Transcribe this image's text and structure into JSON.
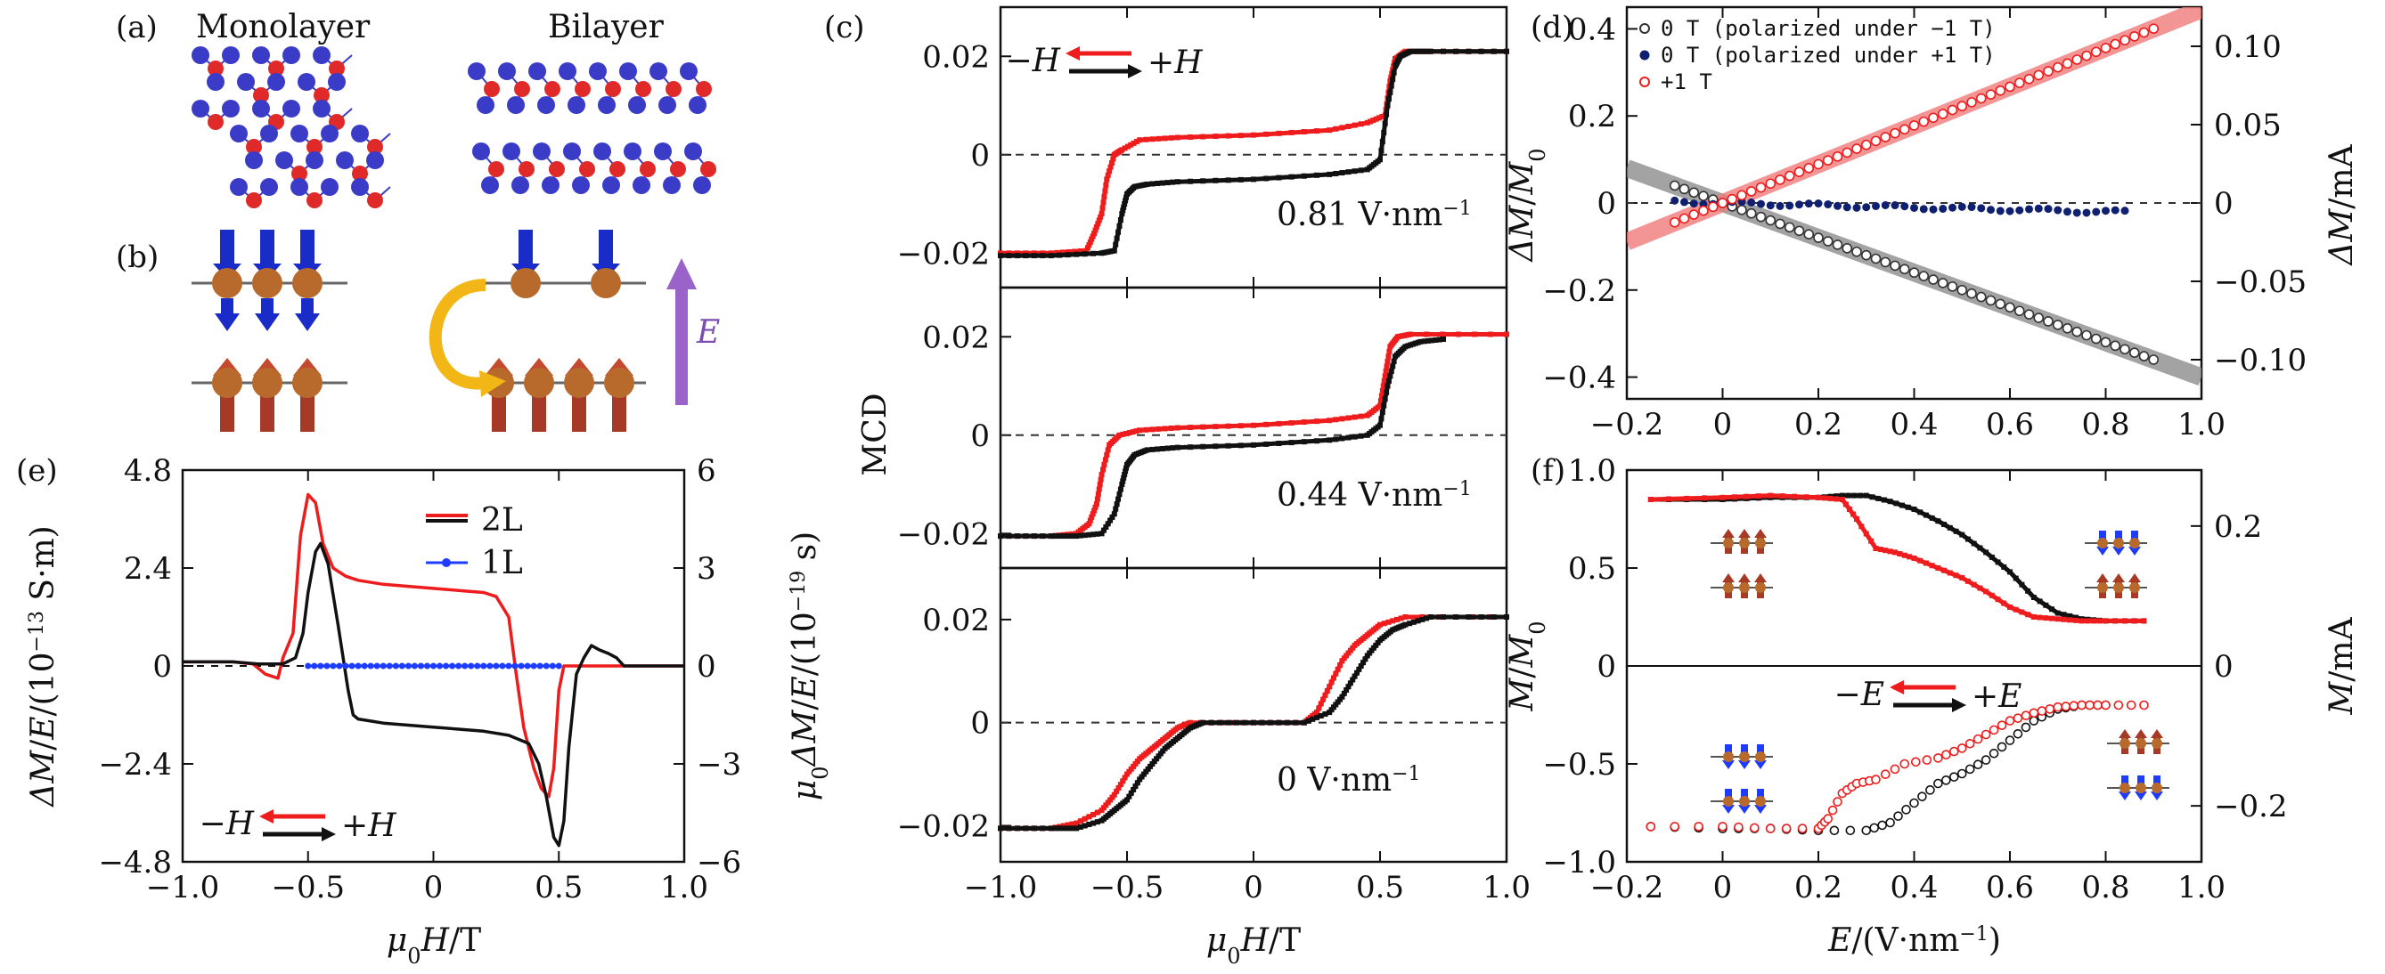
{
  "figure": {
    "panel_labels": {
      "a": "(a)",
      "b": "(b)",
      "c": "(c)",
      "d": "(d)",
      "e": "(e)",
      "f": "(f)"
    },
    "schematic": {
      "monolayer": "Monolayer",
      "bilayer": "Bilayer",
      "efield_label": "E"
    }
  },
  "colors": {
    "red": "#ee1c1c",
    "black": "#111111",
    "blue": "#1e3cff",
    "navy": "#102070",
    "gray_band": "#8c8c8c",
    "pink_band": "#f07a7a",
    "purple": "#9a63c9",
    "gold": "#f2b616",
    "atom_blue": "#3a3cc8",
    "atom_red": "#e02a2a",
    "bronze": "#b86a2c"
  },
  "chart_data": [
    {
      "id": "e",
      "type": "line",
      "xlabel": "μ0H/T",
      "ylabel": "ΔM/E/(10−13 S·m)",
      "ylabel2": "μ0ΔM/E/(10−19 s)",
      "xlim": [
        -1.0,
        1.0
      ],
      "ylim": [
        -4.8,
        4.8
      ],
      "ylim2": [
        -6,
        6
      ],
      "xticks": [
        "−1.0",
        "−0.5",
        "0",
        "0.5",
        "1.0"
      ],
      "yticks": [
        "−4.8",
        "−2.4",
        "0",
        "2.4",
        "4.8"
      ],
      "yticks2": [
        "−6",
        "−3",
        "0",
        "3",
        "6"
      ],
      "legend": [
        "2L",
        "1L"
      ],
      "annotation": {
        "left": "−H",
        "right": "+H"
      },
      "series": [
        {
          "name": "2L",
          "color": "red",
          "x": [
            -1.0,
            -0.8,
            -0.72,
            -0.67,
            -0.62,
            -0.6,
            -0.56,
            -0.53,
            -0.5,
            -0.47,
            -0.44,
            -0.4,
            -0.35,
            -0.3,
            -0.2,
            -0.1,
            0,
            0.1,
            0.2,
            0.25,
            0.3,
            0.33,
            0.36,
            0.4,
            0.43,
            0.46,
            0.48,
            0.5,
            0.52,
            0.55,
            0.6,
            0.7,
            0.8,
            0.9,
            1.0
          ],
          "y": [
            0.1,
            0.1,
            0.05,
            -0.2,
            -0.3,
            0.2,
            0.8,
            3.2,
            4.2,
            4.0,
            3.0,
            2.4,
            2.2,
            2.1,
            2.0,
            1.95,
            1.9,
            1.85,
            1.8,
            1.7,
            1.2,
            -0.2,
            -1.5,
            -2.5,
            -3.0,
            -3.2,
            -2.5,
            -0.6,
            0.0,
            0.0,
            0.0,
            0.0,
            0.0,
            0.0,
            0.0
          ]
        },
        {
          "name": "black",
          "color": "black",
          "x": [
            -1.0,
            -0.8,
            -0.7,
            -0.6,
            -0.55,
            -0.52,
            -0.5,
            -0.47,
            -0.45,
            -0.42,
            -0.38,
            -0.34,
            -0.32,
            -0.3,
            -0.25,
            -0.2,
            -0.1,
            0,
            0.1,
            0.2,
            0.3,
            0.38,
            0.42,
            0.45,
            0.48,
            0.5,
            0.52,
            0.54,
            0.57,
            0.6,
            0.63,
            0.66,
            0.7,
            0.73,
            0.76,
            0.8,
            1.0
          ],
          "y": [
            0.1,
            0.1,
            0.05,
            0.05,
            0.2,
            0.8,
            1.8,
            2.8,
            3.0,
            2.5,
            1.0,
            -0.6,
            -1.2,
            -1.3,
            -1.35,
            -1.4,
            -1.45,
            -1.5,
            -1.55,
            -1.6,
            -1.7,
            -1.9,
            -2.4,
            -3.2,
            -4.2,
            -4.4,
            -3.8,
            -2.0,
            -0.2,
            0.2,
            0.5,
            0.4,
            0.3,
            0.2,
            0.0,
            0.0,
            0.0
          ]
        },
        {
          "name": "1L",
          "color": "blue",
          "x": [
            -0.5,
            -0.4,
            -0.3,
            -0.2,
            -0.1,
            0,
            0.1,
            0.2,
            0.3,
            0.4,
            0.5
          ],
          "y": [
            0,
            0,
            0,
            0,
            0,
            0,
            0,
            0,
            0,
            0,
            0
          ]
        }
      ]
    },
    {
      "id": "c",
      "type": "line",
      "xlabel": "μ0H/T",
      "ylabel": "MCD",
      "xlim": [
        -1.0,
        1.0
      ],
      "ylim": [
        -0.027,
        0.03
      ],
      "xticks": [
        "−1.0",
        "−0.5",
        "0",
        "0.5",
        "1.0"
      ],
      "yticks": [
        "−0.02",
        "0",
        "0.02"
      ],
      "annotation": {
        "left": "−H",
        "right": "+H"
      },
      "subplots": [
        {
          "label": "0.81 V·nm−1",
          "series": [
            {
              "name": "red",
              "color": "red",
              "x": [
                -1.0,
                -0.8,
                -0.66,
                -0.63,
                -0.6,
                -0.58,
                -0.55,
                -0.52,
                -0.45,
                -0.3,
                0,
                0.3,
                0.45,
                0.52,
                0.54,
                0.56,
                0.6,
                0.7,
                1.0
              ],
              "y": [
                -0.02,
                -0.02,
                -0.0195,
                -0.016,
                -0.012,
                -0.005,
                0.0,
                0.001,
                0.003,
                0.0035,
                0.004,
                0.005,
                0.0065,
                0.008,
                0.015,
                0.0195,
                0.021,
                0.021,
                0.021
              ]
            },
            {
              "name": "black",
              "color": "black",
              "x": [
                -1.0,
                -0.8,
                -0.6,
                -0.55,
                -0.52,
                -0.5,
                -0.47,
                -0.42,
                -0.3,
                0,
                0.3,
                0.45,
                0.5,
                0.53,
                0.56,
                0.58,
                0.62,
                0.7,
                1.0
              ],
              "y": [
                -0.0205,
                -0.0205,
                -0.02,
                -0.0195,
                -0.012,
                -0.008,
                -0.0065,
                -0.006,
                -0.0055,
                -0.005,
                -0.004,
                -0.003,
                -0.001,
                0.01,
                0.018,
                0.02,
                0.021,
                0.021,
                0.021
              ]
            }
          ]
        },
        {
          "label": "0.44 V·nm−1",
          "series": [
            {
              "name": "red",
              "color": "red",
              "x": [
                -1.0,
                -0.8,
                -0.7,
                -0.65,
                -0.62,
                -0.6,
                -0.57,
                -0.53,
                -0.45,
                -0.3,
                0,
                0.3,
                0.45,
                0.5,
                0.52,
                0.54,
                0.57,
                0.62,
                1.0
              ],
              "y": [
                -0.0205,
                -0.0205,
                -0.02,
                -0.018,
                -0.014,
                -0.008,
                -0.002,
                0.0,
                0.001,
                0.0015,
                0.002,
                0.003,
                0.004,
                0.006,
                0.012,
                0.018,
                0.02,
                0.0205,
                0.0205
              ]
            },
            {
              "name": "black",
              "color": "black",
              "x": [
                -1.0,
                -0.8,
                -0.7,
                -0.6,
                -0.55,
                -0.52,
                -0.5,
                -0.47,
                -0.42,
                -0.3,
                0,
                0.3,
                0.45,
                0.5,
                0.53,
                0.56,
                0.6,
                0.66,
                0.75
              ],
              "y": [
                -0.0205,
                -0.0205,
                -0.0205,
                -0.02,
                -0.016,
                -0.01,
                -0.006,
                -0.004,
                -0.003,
                -0.0025,
                -0.002,
                -0.001,
                0.0,
                0.002,
                0.01,
                0.016,
                0.018,
                0.019,
                0.0195
              ]
            }
          ]
        },
        {
          "label": "0 V·nm−1",
          "series": [
            {
              "name": "red",
              "color": "red",
              "x": [
                -1.0,
                -0.8,
                -0.7,
                -0.6,
                -0.55,
                -0.5,
                -0.45,
                -0.4,
                -0.35,
                -0.3,
                -0.25,
                0,
                0.2,
                0.25,
                0.3,
                0.35,
                0.4,
                0.45,
                0.5,
                0.6,
                1.0
              ],
              "y": [
                -0.0205,
                -0.0205,
                -0.0195,
                -0.017,
                -0.014,
                -0.01,
                -0.007,
                -0.005,
                -0.003,
                -0.001,
                0.0,
                0.0,
                0.0,
                0.002,
                0.007,
                0.012,
                0.015,
                0.017,
                0.019,
                0.0205,
                0.0205
              ]
            },
            {
              "name": "black",
              "color": "black",
              "x": [
                -1.0,
                -0.8,
                -0.7,
                -0.6,
                -0.55,
                -0.5,
                -0.45,
                -0.4,
                -0.35,
                -0.3,
                -0.25,
                -0.2,
                0,
                0.2,
                0.3,
                0.35,
                0.4,
                0.45,
                0.5,
                0.55,
                0.6,
                0.7,
                1.0
              ],
              "y": [
                -0.0205,
                -0.0205,
                -0.0205,
                -0.019,
                -0.017,
                -0.015,
                -0.011,
                -0.008,
                -0.005,
                -0.003,
                -0.001,
                0.0,
                0.0,
                0.0,
                0.002,
                0.005,
                0.009,
                0.013,
                0.016,
                0.018,
                0.019,
                0.0205,
                0.0205
              ]
            }
          ]
        }
      ]
    },
    {
      "id": "d",
      "type": "scatter",
      "ylabel": "ΔM/M0",
      "ylabel2": "ΔM/mA",
      "xlim": [
        -0.2,
        1.0
      ],
      "ylim": [
        -0.45,
        0.45
      ],
      "ylim2": [
        -0.125,
        0.125
      ],
      "xticks": [
        "−0.2",
        "0",
        "0.2",
        "0.4",
        "0.6",
        "0.8",
        "1.0"
      ],
      "yticks": [
        "−0.4",
        "−0.2",
        "0",
        "0.2",
        "0.4"
      ],
      "yticks2": [
        "−0.10",
        "−0.05",
        "0",
        "0.05",
        "0.10"
      ],
      "legend": [
        "0 T (polarized under −1 T)",
        "0 T (polarized under +1 T)",
        "+1 T"
      ],
      "series": [
        {
          "name": "0 T (polarized under −1 T)",
          "color": "gray",
          "x0": -0.1,
          "x1": 0.9,
          "slope": -0.4,
          "band": [
            -0.2,
            1.0
          ]
        },
        {
          "name": "0 T (polarized under +1 T)",
          "color": "navy",
          "x0": -0.1,
          "x1": 0.85,
          "slope": -0.025
        },
        {
          "name": "+1 T",
          "color": "red",
          "x0": -0.1,
          "x1": 0.9,
          "slope": 0.445,
          "band": [
            -0.2,
            1.0
          ]
        }
      ]
    },
    {
      "id": "f",
      "type": "scatter",
      "xlabel": "E/(V·nm−1)",
      "ylabel": "M/M0",
      "ylabel2": "M/mA",
      "xlim": [
        -0.2,
        1.0
      ],
      "ylim": [
        -1.0,
        1.0
      ],
      "ylim2": [
        -0.28,
        0.28
      ],
      "xticks": [
        "−0.2",
        "0",
        "0.2",
        "0.4",
        "0.6",
        "0.8",
        "1.0"
      ],
      "yticks": [
        "−1.0",
        "−0.5",
        "0",
        "0.5",
        "1.0"
      ],
      "yticks2": [
        "−0.2",
        "0",
        "0.2"
      ],
      "annotation": {
        "left": "−E",
        "right": "+E"
      },
      "top": [
        {
          "name": "black",
          "color": "black",
          "x": [
            -0.15,
            0,
            0.1,
            0.2,
            0.25,
            0.3,
            0.35,
            0.4,
            0.45,
            0.5,
            0.55,
            0.6,
            0.65,
            0.7,
            0.75,
            0.8,
            0.88
          ],
          "y": [
            0.85,
            0.85,
            0.86,
            0.86,
            0.87,
            0.87,
            0.84,
            0.8,
            0.74,
            0.67,
            0.58,
            0.48,
            0.35,
            0.27,
            0.24,
            0.23,
            0.23
          ]
        },
        {
          "name": "red",
          "color": "red",
          "x": [
            -0.15,
            0,
            0.1,
            0.2,
            0.25,
            0.28,
            0.32,
            0.36,
            0.4,
            0.45,
            0.5,
            0.55,
            0.6,
            0.65,
            0.7,
            0.75,
            0.8,
            0.88
          ],
          "y": [
            0.85,
            0.86,
            0.87,
            0.86,
            0.85,
            0.75,
            0.6,
            0.58,
            0.55,
            0.5,
            0.45,
            0.38,
            0.3,
            0.25,
            0.24,
            0.23,
            0.23,
            0.23
          ]
        }
      ],
      "bottom": [
        {
          "name": "black",
          "color": "black",
          "x": [
            -0.15,
            0,
            0.1,
            0.2,
            0.3,
            0.35,
            0.4,
            0.45,
            0.5,
            0.55,
            0.6,
            0.65,
            0.7,
            0.75,
            0.8
          ],
          "y": [
            -0.82,
            -0.83,
            -0.83,
            -0.84,
            -0.84,
            -0.8,
            -0.7,
            -0.6,
            -0.55,
            -0.48,
            -0.38,
            -0.28,
            -0.22,
            -0.2,
            -0.2
          ]
        },
        {
          "name": "red",
          "color": "red",
          "x": [
            -0.15,
            0,
            0.1,
            0.2,
            0.22,
            0.25,
            0.28,
            0.32,
            0.38,
            0.45,
            0.5,
            0.55,
            0.6,
            0.65,
            0.7,
            0.75,
            0.8,
            0.88
          ],
          "y": [
            -0.82,
            -0.82,
            -0.83,
            -0.83,
            -0.78,
            -0.65,
            -0.6,
            -0.58,
            -0.5,
            -0.47,
            -0.42,
            -0.35,
            -0.28,
            -0.24,
            -0.21,
            -0.2,
            -0.2,
            -0.2
          ]
        }
      ]
    }
  ]
}
